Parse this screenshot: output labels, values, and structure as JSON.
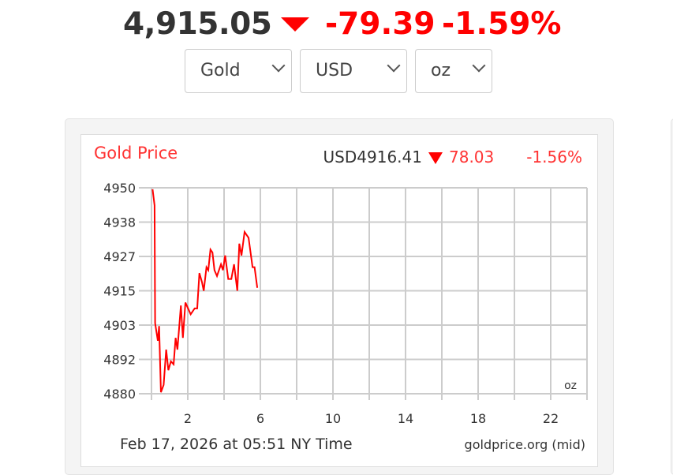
{
  "header": {
    "price": "4,915.05",
    "direction_icon": "down-triangle-icon",
    "change": "-79.39",
    "change_pct": "-1.59%"
  },
  "selectors": {
    "metal": "Gold",
    "currency": "USD",
    "unit": "oz"
  },
  "colors": {
    "down": "#ff0000",
    "line": "#ff0000",
    "grid": "#cccccc"
  },
  "chart_data": {
    "type": "line",
    "title": "Gold Price",
    "quote": {
      "price": "USD4916.41",
      "change": "78.03",
      "change_pct": "-1.56%"
    },
    "unit_label": "oz",
    "date_label": "Feb 17, 2026 at 05:51 NY Time",
    "source": "goldprice.org (mid)",
    "xlim": [
      0,
      24
    ],
    "ylim": [
      4880,
      4950
    ],
    "x_ticks": [
      "2",
      "6",
      "10",
      "14",
      "18",
      "22"
    ],
    "y_ticks": [
      "4950",
      "4938",
      "4927",
      "4915",
      "4903",
      "4892",
      "4880"
    ],
    "grid": true,
    "series": [
      {
        "x": [
          0.06,
          0.17,
          0.2,
          0.35,
          0.42,
          0.52,
          0.67,
          0.81,
          0.93,
          1.07,
          1.22,
          1.33,
          1.43,
          1.62,
          1.73,
          1.87,
          2.16,
          2.38,
          2.52,
          2.64,
          2.78,
          2.88,
          3.03,
          3.13,
          3.25,
          3.36,
          3.47,
          3.61,
          3.83,
          3.94,
          4.06,
          4.23,
          4.4,
          4.55,
          4.73,
          4.84,
          4.96,
          5.13,
          5.35,
          5.57,
          5.68,
          5.83
        ],
        "y": [
          4949.5,
          4944,
          4904,
          4898,
          4903,
          4880.5,
          4883,
          4895,
          4888,
          4891,
          4890,
          4899,
          4895,
          4910,
          4899,
          4911,
          4907,
          4909,
          4909,
          4921,
          4918,
          4915,
          4923,
          4922,
          4929,
          4928,
          4922,
          4920,
          4924,
          4922,
          4927,
          4919,
          4919,
          4924,
          4915,
          4931,
          4927,
          4935,
          4933,
          4923,
          4923,
          4916
        ]
      }
    ]
  }
}
